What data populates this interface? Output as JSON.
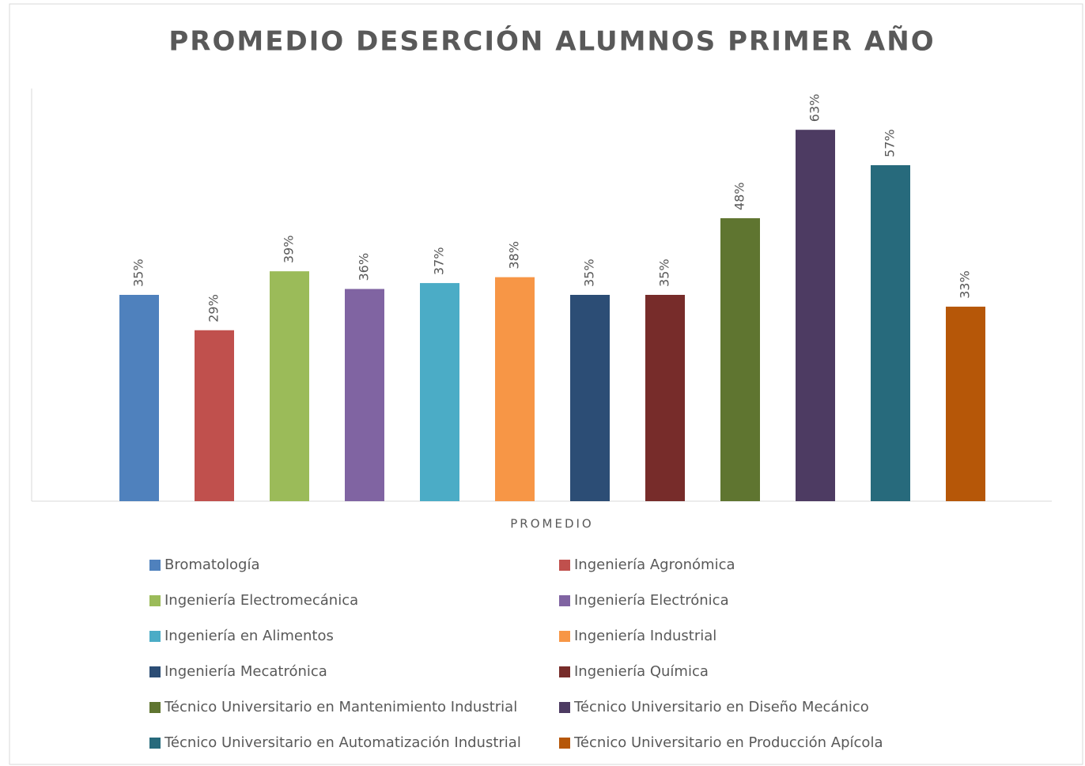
{
  "chart_data": {
    "type": "bar",
    "title": "PROMEDIO DESERCIÓN ALUMNOS PRIMER AÑO",
    "categories": [
      "PROMEDIO"
    ],
    "ylim": [
      0,
      70
    ],
    "series": [
      {
        "name": "Bromatología",
        "color": "#4f81bd",
        "values": [
          35
        ],
        "value_labels": [
          "35%"
        ]
      },
      {
        "name": "Ingeniería Agronómica",
        "color": "#c0504d",
        "values": [
          29
        ],
        "value_labels": [
          "29%"
        ]
      },
      {
        "name": "Ingeniería Electromecánica",
        "color": "#9bbb59",
        "values": [
          39
        ],
        "value_labels": [
          "39%"
        ]
      },
      {
        "name": "Ingeniería Electrónica",
        "color": "#8064a2",
        "values": [
          36
        ],
        "value_labels": [
          "36%"
        ]
      },
      {
        "name": "Ingeniería en Alimentos",
        "color": "#4bacc6",
        "values": [
          37
        ],
        "value_labels": [
          "37%"
        ]
      },
      {
        "name": "Ingeniería Industrial",
        "color": "#f79646",
        "values": [
          38
        ],
        "value_labels": [
          "38%"
        ]
      },
      {
        "name": "Ingeniería Mecatrónica",
        "color": "#2c4d75",
        "values": [
          35
        ],
        "value_labels": [
          "35%"
        ]
      },
      {
        "name": "Ingeniería Química",
        "color": "#772c2a",
        "values": [
          35
        ],
        "value_labels": [
          "35%"
        ]
      },
      {
        "name": "Técnico Universitario en Mantenimiento Industrial",
        "color": "#5f7530",
        "values": [
          48
        ],
        "value_labels": [
          "48%"
        ]
      },
      {
        "name": "Técnico Universitario en Diseño Mecánico",
        "color": "#4d3b62",
        "values": [
          63
        ],
        "value_labels": [
          "63%"
        ]
      },
      {
        "name": "Técnico Universitario en Automatización Industrial",
        "color": "#276a7c",
        "values": [
          57
        ],
        "value_labels": [
          "57%"
        ]
      },
      {
        "name": "Técnico Universitario en Producción Apícola",
        "color": "#b65708",
        "values": [
          33
        ],
        "value_labels": [
          "33%"
        ]
      }
    ]
  }
}
